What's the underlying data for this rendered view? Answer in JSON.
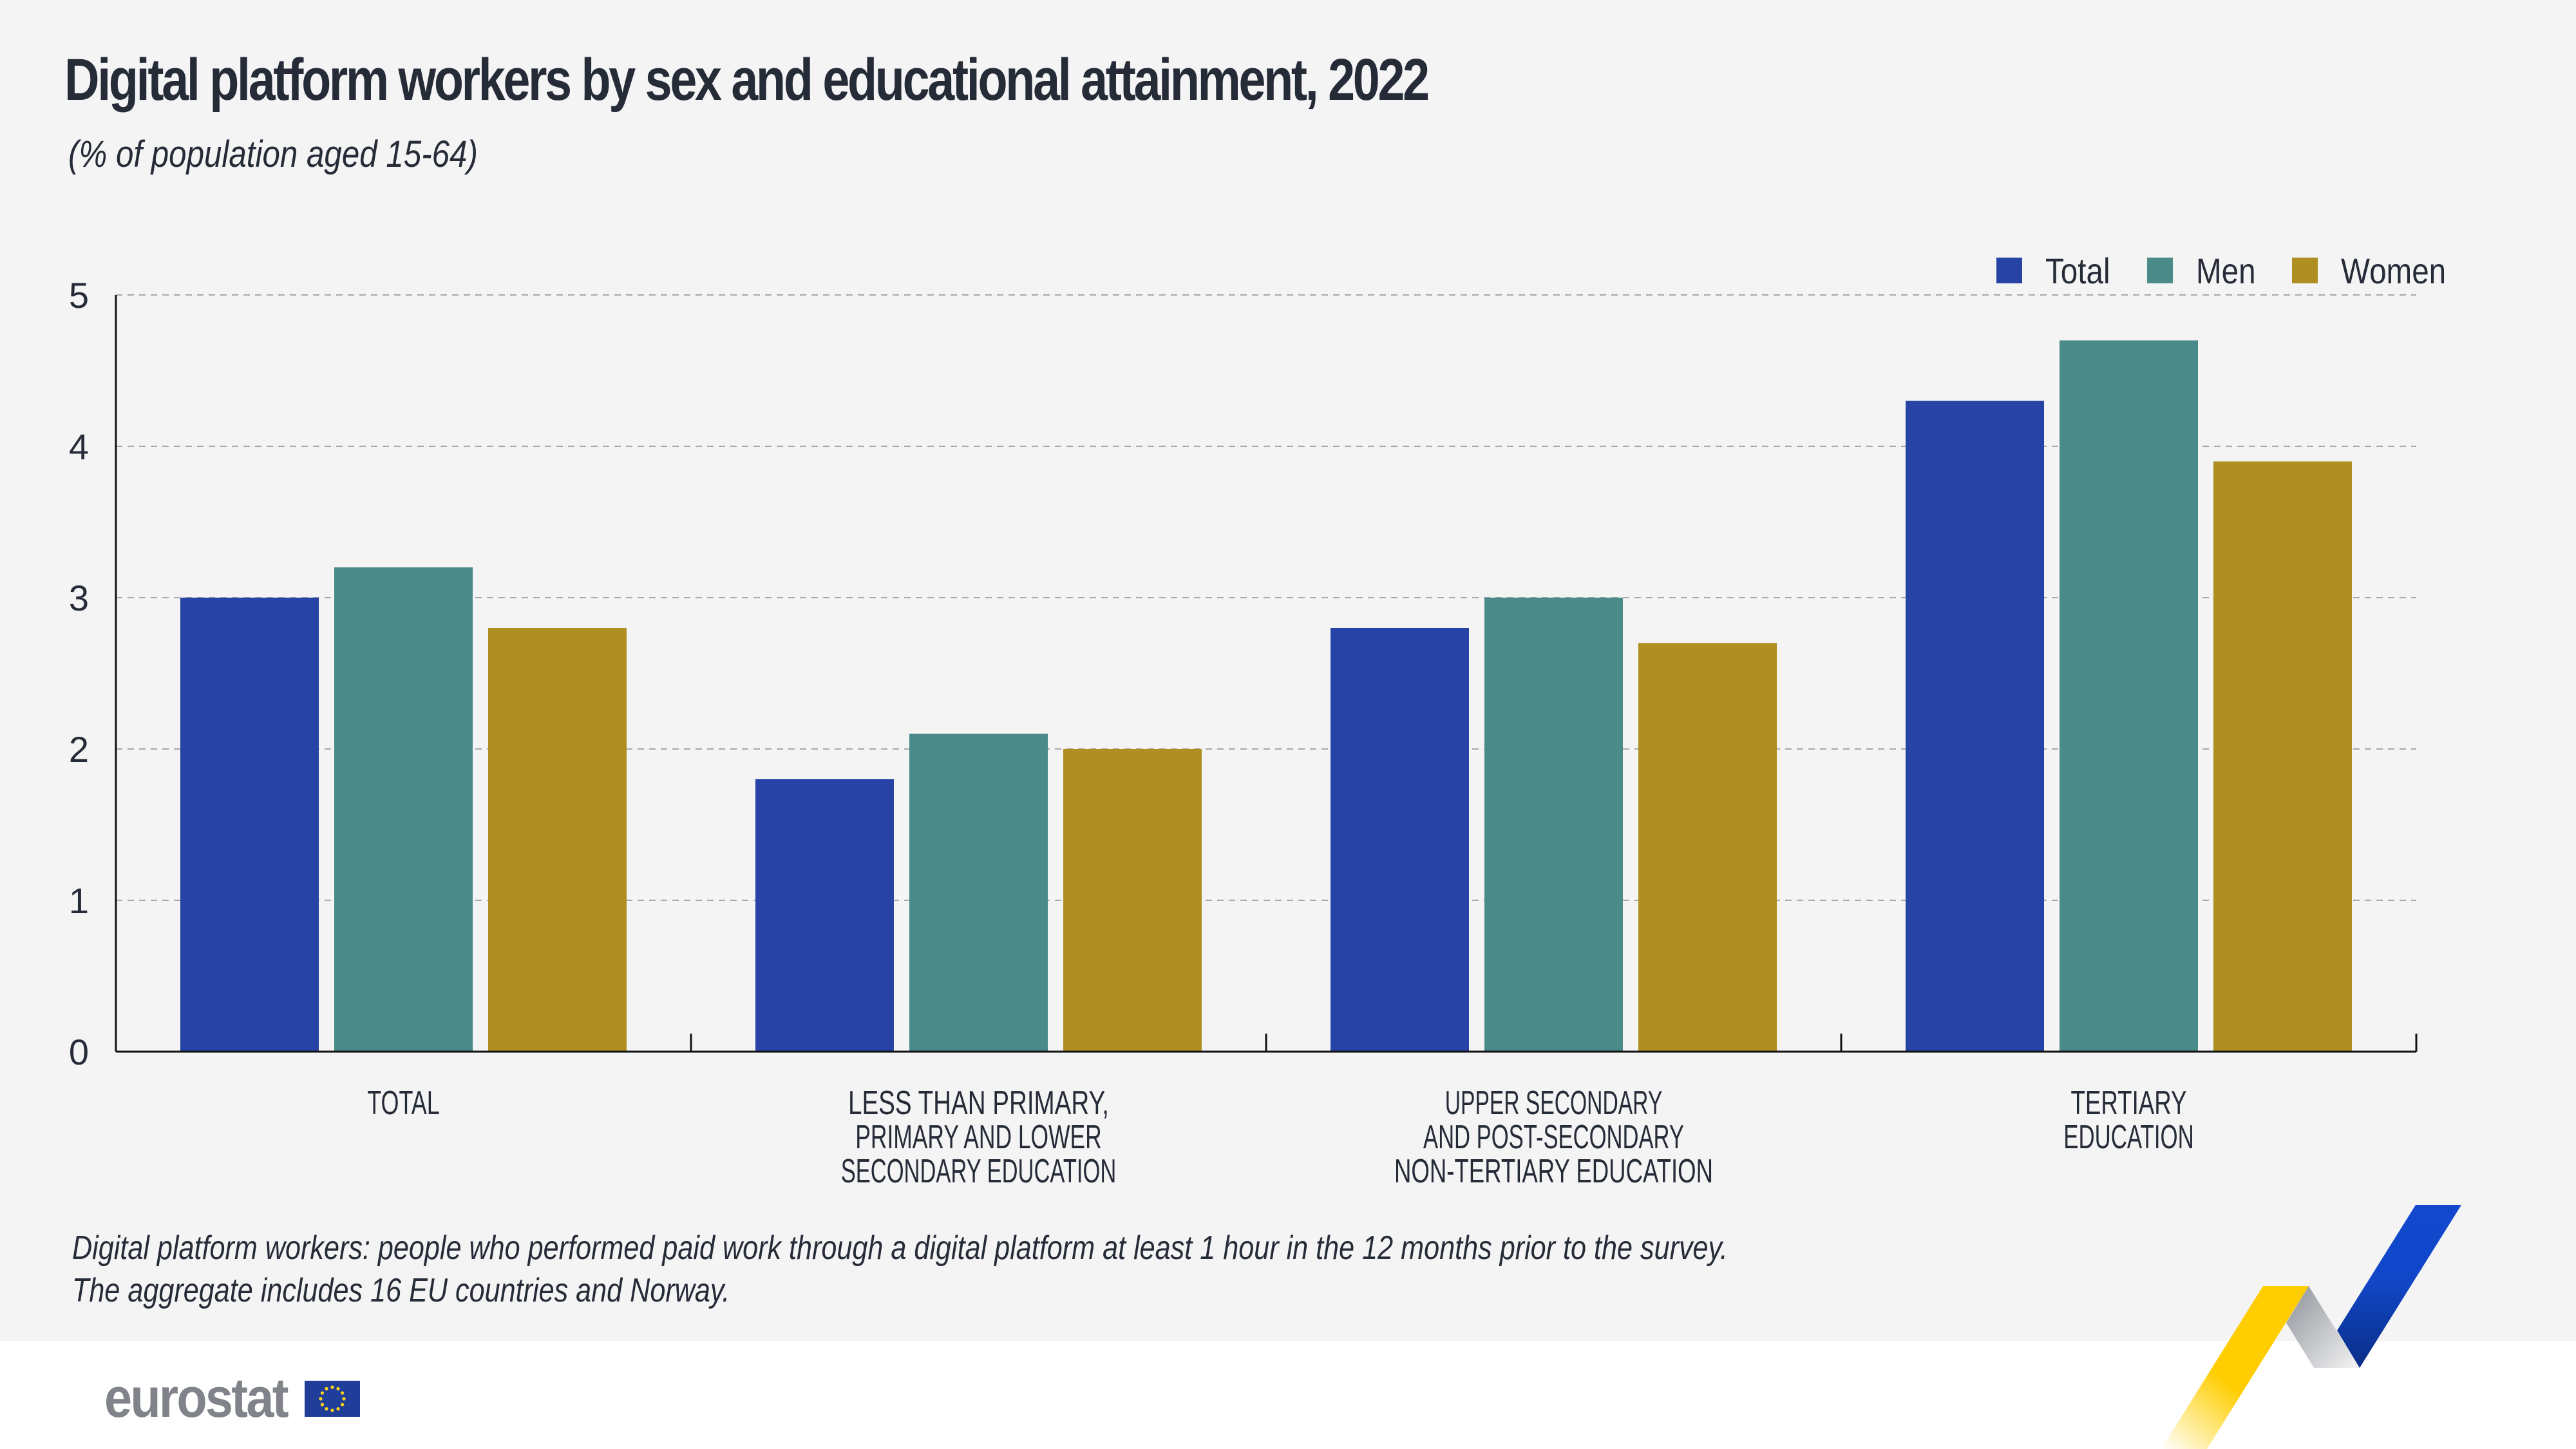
{
  "header": {
    "title": "Digital platform workers by sex and educational attainment, 2022",
    "subtitle": "(% of population aged 15-64)"
  },
  "legend": [
    {
      "label": "Total",
      "color": "#2743a6"
    },
    {
      "label": "Men",
      "color": "#4a8b89"
    },
    {
      "label": "Women",
      "color": "#b08f22"
    }
  ],
  "chart_data": {
    "type": "bar",
    "title": "Digital platform workers by sex and educational attainment, 2022",
    "subtitle": "(% of population aged 15-64)",
    "xlabel": "",
    "ylabel": "",
    "ylim": [
      0,
      5
    ],
    "yticks": [
      0,
      1,
      2,
      3,
      4,
      5
    ],
    "grid": true,
    "legend_position": "top-right",
    "categories": [
      [
        "TOTAL"
      ],
      [
        "LESS THAN PRIMARY,",
        "PRIMARY AND LOWER",
        "SECONDARY EDUCATION"
      ],
      [
        "UPPER SECONDARY",
        "AND POST-SECONDARY",
        "NON-TERTIARY EDUCATION"
      ],
      [
        "TERTIARY",
        "EDUCATION"
      ]
    ],
    "series": [
      {
        "name": "Total",
        "color": "#2743a6",
        "values": [
          3.0,
          1.8,
          2.8,
          4.3
        ]
      },
      {
        "name": "Men",
        "color": "#4a8b89",
        "values": [
          3.2,
          2.1,
          3.0,
          4.7
        ]
      },
      {
        "name": "Women",
        "color": "#b08f22",
        "values": [
          2.8,
          2.0,
          2.7,
          3.9
        ]
      }
    ]
  },
  "footer": {
    "notes": [
      "Digital platform workers: people who performed paid work through a digital platform at least 1 hour in the 12 months prior to the survey.",
      "The aggregate includes 16 EU countries and Norway."
    ],
    "logo_text": "eurostat"
  }
}
